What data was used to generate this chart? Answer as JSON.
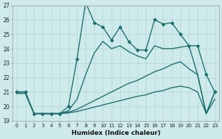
{
  "xlabel": "Humidex (Indice chaleur)",
  "xlim": [
    -0.5,
    23.5
  ],
  "ylim": [
    19,
    27
  ],
  "background_color": "#ceeaea",
  "grid_color": "#b8d8d8",
  "line_color": "#1a6e6e",
  "xticks": [
    0,
    1,
    2,
    3,
    4,
    5,
    6,
    7,
    8,
    9,
    10,
    11,
    12,
    13,
    14,
    15,
    16,
    17,
    18,
    19,
    20,
    21,
    22,
    23
  ],
  "yticks": [
    19,
    20,
    21,
    22,
    23,
    24,
    25,
    26,
    27
  ],
  "lines": [
    {
      "x": [
        0,
        1,
        2,
        3,
        4,
        5,
        6,
        7,
        8,
        9,
        10,
        11,
        12,
        13,
        14,
        15,
        16,
        17,
        18,
        19,
        20,
        21,
        22,
        23
      ],
      "y": [
        21.0,
        21.0,
        19.5,
        19.5,
        19.5,
        19.5,
        20.0,
        23.3,
        27.2,
        25.8,
        25.5,
        24.6,
        25.5,
        24.5,
        23.9,
        23.9,
        26.0,
        25.7,
        25.8,
        25.0,
        24.2,
        24.2,
        22.2,
        21.0
      ],
      "marker": "D",
      "markersize": 2.5,
      "linewidth": 1.0
    },
    {
      "x": [
        0,
        1,
        2,
        3,
        4,
        5,
        6,
        7,
        8,
        9,
        10,
        11,
        12,
        13,
        14,
        15,
        16,
        17,
        18,
        19,
        20,
        21,
        22,
        23
      ],
      "y": [
        21.0,
        21.0,
        19.5,
        19.5,
        19.5,
        19.5,
        19.7,
        20.5,
        22.2,
        23.7,
        24.5,
        24.0,
        24.2,
        23.8,
        23.5,
        23.3,
        24.2,
        24.0,
        24.0,
        24.1,
        24.2,
        22.2,
        19.5,
        21.0
      ],
      "marker": null,
      "linewidth": 1.0
    },
    {
      "x": [
        0,
        1,
        2,
        3,
        4,
        5,
        6,
        7,
        8,
        9,
        10,
        11,
        12,
        13,
        14,
        15,
        16,
        17,
        18,
        19,
        20,
        21,
        22,
        23
      ],
      "y": [
        20.9,
        20.9,
        19.5,
        19.5,
        19.5,
        19.5,
        19.6,
        19.8,
        20.1,
        20.4,
        20.7,
        21.0,
        21.3,
        21.6,
        21.8,
        22.1,
        22.4,
        22.6,
        22.9,
        23.1,
        22.6,
        22.2,
        19.5,
        21.0
      ],
      "marker": null,
      "linewidth": 1.0
    },
    {
      "x": [
        0,
        1,
        2,
        3,
        4,
        5,
        6,
        7,
        8,
        9,
        10,
        11,
        12,
        13,
        14,
        15,
        16,
        17,
        18,
        19,
        20,
        21,
        22,
        23
      ],
      "y": [
        20.9,
        20.9,
        19.5,
        19.5,
        19.5,
        19.5,
        19.55,
        19.65,
        19.8,
        19.95,
        20.1,
        20.25,
        20.4,
        20.55,
        20.7,
        20.8,
        21.0,
        21.1,
        21.3,
        21.4,
        21.3,
        21.0,
        19.5,
        20.5
      ],
      "marker": null,
      "linewidth": 1.0
    }
  ]
}
